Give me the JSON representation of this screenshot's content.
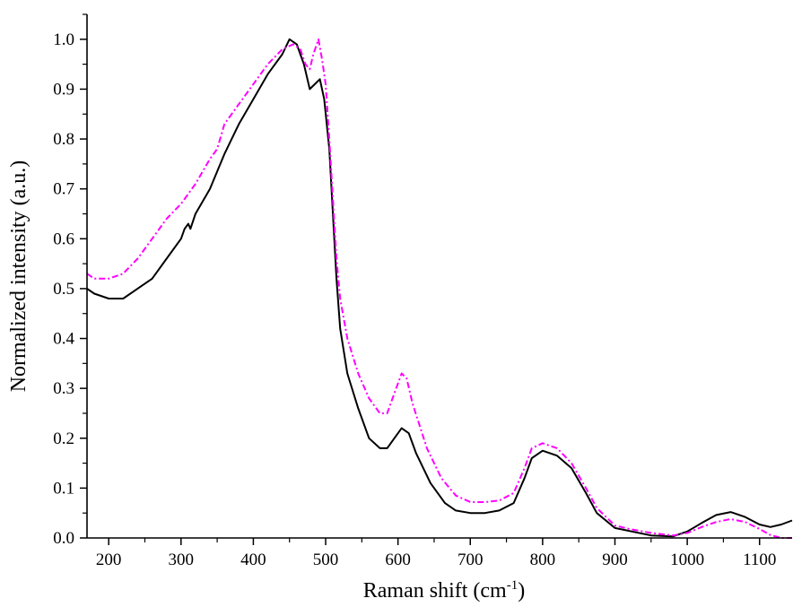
{
  "chart_data": {
    "type": "line",
    "title": "",
    "xlabel": "Raman shift (cm",
    "xlabel_sup": "-1",
    "xlabel_suffix": ")",
    "ylabel": "Normalized intensity (a.u.)",
    "xlim": [
      170,
      1145
    ],
    "ylim": [
      0,
      1.05
    ],
    "x_ticks": [
      200,
      300,
      400,
      500,
      600,
      700,
      800,
      900,
      1000,
      1100
    ],
    "x_tick_labels": [
      "200",
      "300",
      "400",
      "500",
      "600",
      "700",
      "800",
      "900",
      "1000",
      "1100"
    ],
    "y_ticks": [
      0.0,
      0.1,
      0.2,
      0.3,
      0.4,
      0.5,
      0.6,
      0.7,
      0.8,
      0.9,
      1.0
    ],
    "y_tick_labels": [
      "0.0",
      "0.1",
      "0.2",
      "0.3",
      "0.4",
      "0.5",
      "0.6",
      "0.7",
      "0.8",
      "0.9",
      "1.0"
    ],
    "grid": false,
    "legend": "none",
    "series": [
      {
        "color": "#000000",
        "style": "solid",
        "points": [
          [
            170,
            0.5
          ],
          [
            180,
            0.49
          ],
          [
            200,
            0.48
          ],
          [
            220,
            0.48
          ],
          [
            240,
            0.5
          ],
          [
            260,
            0.52
          ],
          [
            280,
            0.56
          ],
          [
            300,
            0.6
          ],
          [
            305,
            0.62
          ],
          [
            310,
            0.63
          ],
          [
            313,
            0.62
          ],
          [
            320,
            0.65
          ],
          [
            340,
            0.7
          ],
          [
            360,
            0.77
          ],
          [
            380,
            0.83
          ],
          [
            400,
            0.88
          ],
          [
            420,
            0.93
          ],
          [
            440,
            0.97
          ],
          [
            450,
            1.0
          ],
          [
            460,
            0.99
          ],
          [
            470,
            0.95
          ],
          [
            478,
            0.9
          ],
          [
            485,
            0.91
          ],
          [
            492,
            0.92
          ],
          [
            498,
            0.88
          ],
          [
            505,
            0.78
          ],
          [
            510,
            0.65
          ],
          [
            515,
            0.52
          ],
          [
            520,
            0.42
          ],
          [
            530,
            0.33
          ],
          [
            545,
            0.26
          ],
          [
            560,
            0.2
          ],
          [
            575,
            0.18
          ],
          [
            585,
            0.18
          ],
          [
            595,
            0.2
          ],
          [
            605,
            0.22
          ],
          [
            615,
            0.21
          ],
          [
            625,
            0.17
          ],
          [
            645,
            0.11
          ],
          [
            665,
            0.07
          ],
          [
            680,
            0.055
          ],
          [
            700,
            0.05
          ],
          [
            720,
            0.05
          ],
          [
            740,
            0.055
          ],
          [
            760,
            0.07
          ],
          [
            775,
            0.12
          ],
          [
            785,
            0.16
          ],
          [
            800,
            0.175
          ],
          [
            820,
            0.165
          ],
          [
            840,
            0.14
          ],
          [
            860,
            0.09
          ],
          [
            875,
            0.05
          ],
          [
            900,
            0.02
          ],
          [
            950,
            0.005
          ],
          [
            980,
            0.003
          ],
          [
            1000,
            0.013
          ],
          [
            1020,
            0.03
          ],
          [
            1040,
            0.046
          ],
          [
            1060,
            0.052
          ],
          [
            1080,
            0.042
          ],
          [
            1100,
            0.027
          ],
          [
            1115,
            0.022
          ],
          [
            1130,
            0.027
          ],
          [
            1145,
            0.035
          ]
        ]
      },
      {
        "color": "#ff00ff",
        "style": "dash-dot",
        "points": [
          [
            170,
            0.53
          ],
          [
            180,
            0.52
          ],
          [
            200,
            0.52
          ],
          [
            220,
            0.53
          ],
          [
            240,
            0.56
          ],
          [
            260,
            0.6
          ],
          [
            280,
            0.64
          ],
          [
            300,
            0.67
          ],
          [
            320,
            0.71
          ],
          [
            340,
            0.76
          ],
          [
            350,
            0.78
          ],
          [
            360,
            0.83
          ],
          [
            380,
            0.87
          ],
          [
            400,
            0.91
          ],
          [
            420,
            0.95
          ],
          [
            440,
            0.98
          ],
          [
            455,
            0.99
          ],
          [
            465,
            0.98
          ],
          [
            472,
            0.95
          ],
          [
            478,
            0.94
          ],
          [
            483,
            0.97
          ],
          [
            490,
            1.0
          ],
          [
            495,
            0.96
          ],
          [
            500,
            0.91
          ],
          [
            505,
            0.8
          ],
          [
            510,
            0.68
          ],
          [
            515,
            0.56
          ],
          [
            520,
            0.48
          ],
          [
            530,
            0.4
          ],
          [
            545,
            0.33
          ],
          [
            560,
            0.28
          ],
          [
            575,
            0.25
          ],
          [
            585,
            0.25
          ],
          [
            595,
            0.29
          ],
          [
            605,
            0.33
          ],
          [
            612,
            0.32
          ],
          [
            620,
            0.27
          ],
          [
            640,
            0.18
          ],
          [
            660,
            0.12
          ],
          [
            680,
            0.085
          ],
          [
            700,
            0.072
          ],
          [
            720,
            0.072
          ],
          [
            740,
            0.075
          ],
          [
            760,
            0.09
          ],
          [
            775,
            0.14
          ],
          [
            785,
            0.18
          ],
          [
            800,
            0.19
          ],
          [
            820,
            0.18
          ],
          [
            840,
            0.15
          ],
          [
            860,
            0.1
          ],
          [
            875,
            0.06
          ],
          [
            900,
            0.025
          ],
          [
            920,
            0.018
          ],
          [
            950,
            0.01
          ],
          [
            980,
            0.005
          ],
          [
            1000,
            0.01
          ],
          [
            1020,
            0.022
          ],
          [
            1040,
            0.032
          ],
          [
            1060,
            0.038
          ],
          [
            1080,
            0.032
          ],
          [
            1100,
            0.018
          ],
          [
            1115,
            0.006
          ],
          [
            1130,
            0.0
          ],
          [
            1145,
            0.0
          ]
        ]
      }
    ]
  }
}
